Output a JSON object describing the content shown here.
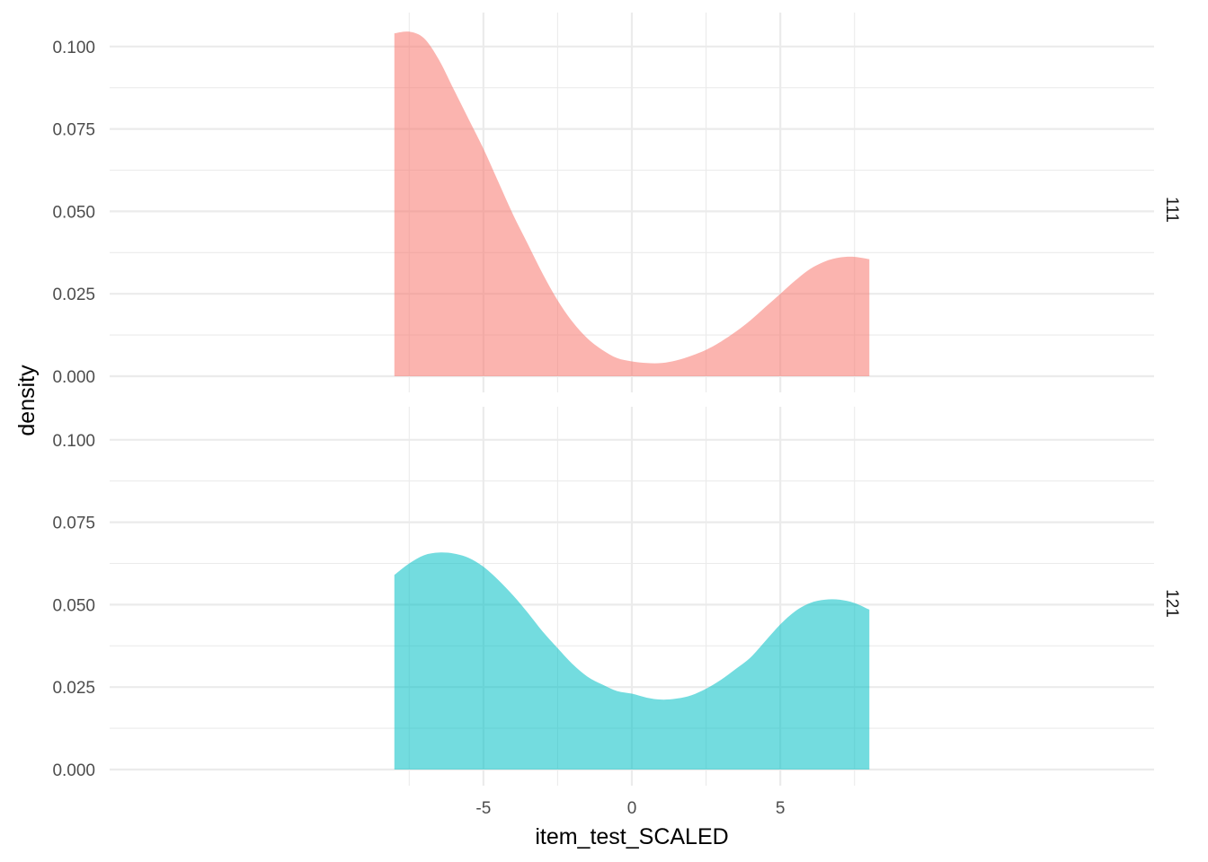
{
  "chart_data": {
    "type": "area",
    "subtype": "density",
    "facet": "rows",
    "xlabel": "item_test_SCALED",
    "ylabel": "density",
    "xlim": [
      -8.5,
      8.5
    ],
    "ylim": [
      0,
      0.108
    ],
    "x_ticks": [
      -5,
      0,
      5
    ],
    "x_tick_labels": [
      "-5",
      "0",
      "5"
    ],
    "y_ticks": [
      0,
      0.025,
      0.05,
      0.075,
      0.1
    ],
    "y_tick_labels": [
      "0.000",
      "0.025",
      "0.050",
      "0.075",
      "0.100"
    ],
    "grid": true,
    "legend": "none",
    "panels": [
      {
        "label": "111",
        "color": "#F8766D",
        "x": [
          -8,
          -7.5,
          -7,
          -6.5,
          -6,
          -5.5,
          -5,
          -4.5,
          -4,
          -3.5,
          -3,
          -2.5,
          -2,
          -1.5,
          -1,
          -0.5,
          0,
          0.5,
          1,
          1.5,
          2,
          2.5,
          3,
          3.5,
          4,
          4.5,
          5,
          5.5,
          6,
          6.5,
          7,
          7.5,
          8
        ],
        "y": [
          0.104,
          0.1045,
          0.1025,
          0.096,
          0.087,
          0.078,
          0.069,
          0.059,
          0.049,
          0.04,
          0.031,
          0.023,
          0.0165,
          0.0115,
          0.008,
          0.0055,
          0.0045,
          0.004,
          0.004,
          0.0048,
          0.0062,
          0.008,
          0.0105,
          0.0135,
          0.017,
          0.021,
          0.025,
          0.029,
          0.0325,
          0.0348,
          0.036,
          0.0362,
          0.0355
        ]
      },
      {
        "label": "121",
        "color": "#00BFC4",
        "x": [
          -8,
          -7.5,
          -7,
          -6.5,
          -6,
          -5.5,
          -5,
          -4.5,
          -4,
          -3.5,
          -3,
          -2.5,
          -2,
          -1.5,
          -1,
          -0.5,
          0,
          0.5,
          1,
          1.5,
          2,
          2.5,
          3,
          3.5,
          4,
          4.5,
          5,
          5.5,
          6,
          6.5,
          7,
          7.5,
          8
        ],
        "y": [
          0.059,
          0.0625,
          0.065,
          0.0658,
          0.0655,
          0.0642,
          0.0615,
          0.0575,
          0.0528,
          0.0475,
          0.0418,
          0.0368,
          0.032,
          0.0282,
          0.0258,
          0.0238,
          0.023,
          0.0218,
          0.0212,
          0.0215,
          0.0225,
          0.0245,
          0.0272,
          0.0305,
          0.034,
          0.039,
          0.044,
          0.048,
          0.0505,
          0.0515,
          0.0515,
          0.0505,
          0.0485
        ]
      }
    ]
  }
}
